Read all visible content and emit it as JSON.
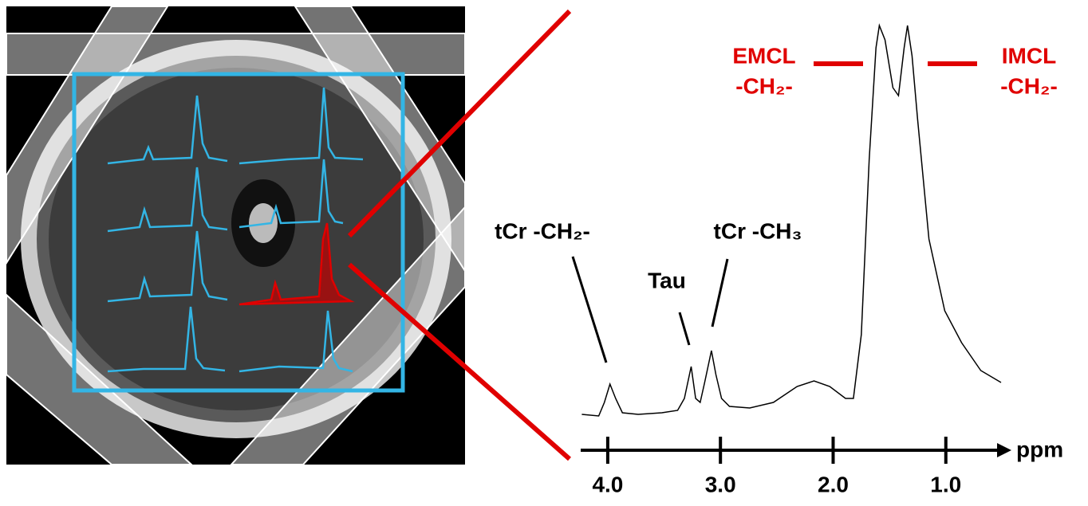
{
  "chart_data": {
    "type": "line",
    "color": "#000000",
    "x_label": "ppm",
    "x": [
      4.23,
      4.08,
      4.03,
      3.98,
      3.93,
      3.87,
      3.73,
      3.52,
      3.38,
      3.32,
      3.26,
      3.22,
      3.18,
      3.14,
      3.08,
      3.04,
      2.99,
      2.92,
      2.74,
      2.53,
      2.32,
      2.17,
      2.03,
      1.89,
      1.82,
      1.75,
      1.68,
      1.62,
      1.59,
      1.54,
      1.47,
      1.42,
      1.37,
      1.34,
      1.3,
      1.25,
      1.15,
      1.01,
      0.86,
      0.69,
      0.51
    ],
    "values": [
      2,
      1.6,
      5,
      9.6,
      6,
      2.4,
      2,
      2.4,
      3,
      6,
      14,
      6,
      5,
      10,
      18,
      12,
      6,
      4,
      3.6,
      5,
      9,
      10.4,
      9,
      6,
      6,
      22,
      66,
      94,
      99.6,
      96,
      84,
      82,
      94,
      99.6,
      92,
      76,
      46,
      28,
      20,
      13,
      10
    ],
    "xlim": [
      4.24,
      0.51
    ],
    "ylim": [
      0,
      100
    ],
    "xticks": [
      {
        "value": 4,
        "label": "4.0"
      },
      {
        "value": 3,
        "label": "3.0"
      },
      {
        "value": 2,
        "label": "2.0"
      },
      {
        "value": 1,
        "label": "1.0"
      }
    ],
    "annotations": [
      {
        "lines": [
          "tCr -CH₂-"
        ]
      },
      {
        "lines": [
          "Tau"
        ]
      },
      {
        "lines": [
          "tCr -CH₃"
        ]
      },
      {
        "lines": [
          "EMCL",
          "-CH₂-"
        ]
      },
      {
        "lines": [
          "IMCL",
          "-CH₂-"
        ]
      }
    ]
  }
}
